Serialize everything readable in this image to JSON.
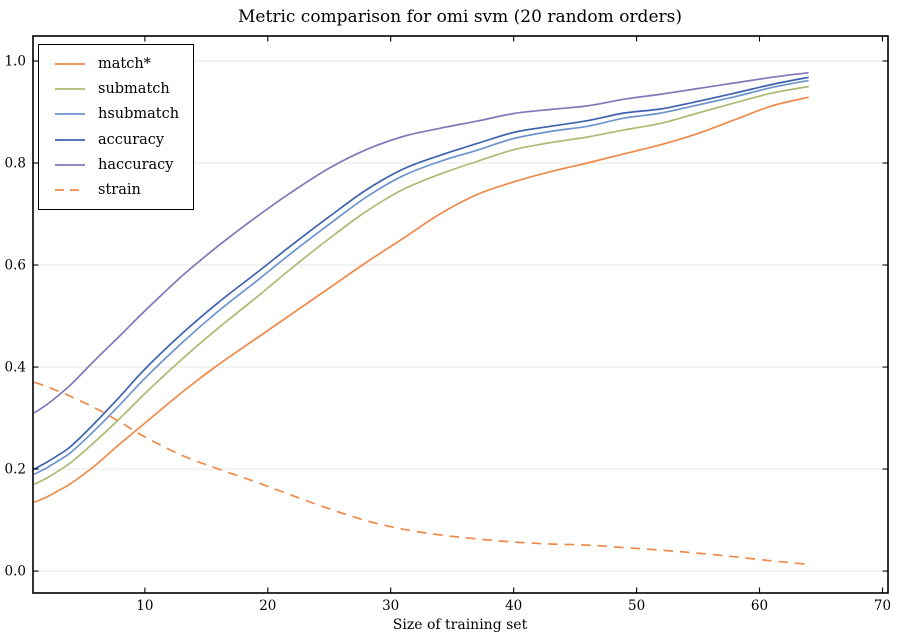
{
  "figure": {
    "background": "#ffffff",
    "frame_color": "#000000",
    "grid_color": "#e6e6e6",
    "text_color": "#000000"
  },
  "chart_data": {
    "type": "line",
    "title": "Metric comparison for omi svm (20 random orders)",
    "xlabel": "Size of training set",
    "ylabel": "",
    "xlim": [
      0.9,
      70.45
    ],
    "ylim": [
      -0.043,
      1.049
    ],
    "xtick_values": [
      10,
      20,
      30,
      40,
      50,
      60,
      70
    ],
    "xtick_labels": [
      "10",
      "20",
      "30",
      "40",
      "50",
      "60",
      "70"
    ],
    "ytick_values": [
      0.0,
      0.2,
      0.4,
      0.6,
      0.8,
      1.0
    ],
    "ytick_labels": [
      "0.0",
      "0.2",
      "0.4",
      "0.6",
      "0.8",
      "1.0"
    ],
    "grid": "horizontal",
    "legend_position": "upper-left",
    "x": [
      1,
      2,
      3,
      4,
      6,
      8,
      10,
      13,
      16,
      19,
      22,
      25,
      28,
      31,
      34,
      37,
      40,
      43,
      46,
      49,
      52,
      55,
      58,
      61,
      64
    ],
    "series": [
      {
        "name": "match*",
        "color": "#EE8A4A",
        "style": "solid",
        "values": [
          0.135,
          0.145,
          0.158,
          0.172,
          0.208,
          0.25,
          0.29,
          0.35,
          0.405,
          0.455,
          0.505,
          0.555,
          0.605,
          0.652,
          0.7,
          0.738,
          0.763,
          0.783,
          0.8,
          0.818,
          0.836,
          0.858,
          0.885,
          0.912,
          0.929
        ]
      },
      {
        "name": "submatch",
        "color": "#ABBB72",
        "style": "solid",
        "values": [
          0.17,
          0.182,
          0.197,
          0.213,
          0.255,
          0.3,
          0.348,
          0.415,
          0.477,
          0.535,
          0.595,
          0.652,
          0.705,
          0.748,
          0.778,
          0.803,
          0.826,
          0.84,
          0.851,
          0.865,
          0.878,
          0.898,
          0.918,
          0.937,
          0.95
        ]
      },
      {
        "name": "hsubmatch",
        "color": "#6D94CD",
        "style": "solid",
        "values": [
          0.19,
          0.202,
          0.217,
          0.233,
          0.278,
          0.327,
          0.378,
          0.447,
          0.51,
          0.567,
          0.625,
          0.68,
          0.733,
          0.775,
          0.803,
          0.825,
          0.848,
          0.862,
          0.872,
          0.888,
          0.898,
          0.914,
          0.93,
          0.948,
          0.962
        ]
      },
      {
        "name": "accuracy",
        "color": "#3E62AF",
        "style": "solid",
        "values": [
          0.2,
          0.213,
          0.228,
          0.245,
          0.292,
          0.343,
          0.396,
          0.465,
          0.527,
          0.583,
          0.64,
          0.695,
          0.747,
          0.788,
          0.815,
          0.838,
          0.86,
          0.872,
          0.883,
          0.898,
          0.906,
          0.921,
          0.937,
          0.954,
          0.968
        ]
      },
      {
        "name": "haccuracy",
        "color": "#8377B8",
        "style": "solid",
        "values": [
          0.31,
          0.326,
          0.345,
          0.366,
          0.415,
          0.462,
          0.51,
          0.578,
          0.638,
          0.693,
          0.744,
          0.79,
          0.826,
          0.852,
          0.868,
          0.882,
          0.897,
          0.905,
          0.912,
          0.925,
          0.935,
          0.946,
          0.957,
          0.968,
          0.977
        ]
      },
      {
        "name": "strain",
        "color": "#EE8A4A",
        "style": "dashed",
        "values": [
          0.37,
          0.362,
          0.352,
          0.342,
          0.319,
          0.292,
          0.263,
          0.227,
          0.2,
          0.175,
          0.148,
          0.122,
          0.099,
          0.082,
          0.071,
          0.063,
          0.057,
          0.053,
          0.051,
          0.046,
          0.041,
          0.035,
          0.028,
          0.02,
          0.013
        ]
      }
    ]
  }
}
